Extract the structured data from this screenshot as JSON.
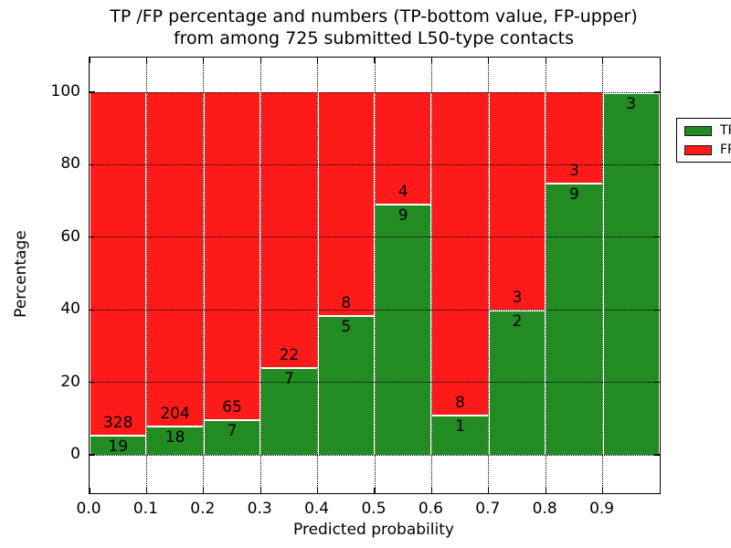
{
  "title": {
    "line1": "TP /FP percentage and numbers (TP-bottom value, FP-upper)",
    "line2": "from among 725 submitted L50-type contacts"
  },
  "chart_data": {
    "type": "bar",
    "stacked": true,
    "normalized_to_percent": true,
    "title": "TP /FP percentage and numbers (TP-bottom value, FP-upper) from among 725 submitted L50-type contacts",
    "xlabel": "Predicted probability",
    "ylabel": "Percentage",
    "total_contacts": 725,
    "categories": [
      "0.0-0.1",
      "0.1-0.2",
      "0.2-0.3",
      "0.3-0.4",
      "0.4-0.5",
      "0.5-0.6",
      "0.6-0.7",
      "0.7-0.8",
      "0.8-0.9",
      "0.9-1.0"
    ],
    "bin_edges": [
      0.0,
      0.1,
      0.2,
      0.3,
      0.4,
      0.5,
      0.6,
      0.7,
      0.8,
      0.9,
      1.0
    ],
    "series": [
      {
        "name": "TP",
        "color": "#228B22",
        "counts": [
          19,
          18,
          7,
          7,
          5,
          9,
          1,
          2,
          9,
          3
        ]
      },
      {
        "name": "FP",
        "color": "#FF1A1A",
        "counts": [
          328,
          204,
          65,
          22,
          8,
          4,
          8,
          3,
          3,
          0
        ]
      }
    ],
    "tp_percent": [
      5.5,
      8.1,
      9.7,
      24.1,
      38.5,
      69.2,
      11.1,
      40.0,
      75.0,
      100.0
    ],
    "x_ticks": [
      "0.0",
      "0.1",
      "0.2",
      "0.3",
      "0.4",
      "0.5",
      "0.6",
      "0.7",
      "0.8",
      "0.9"
    ],
    "y_ticks": [
      0,
      20,
      40,
      60,
      80,
      100
    ],
    "xlim": [
      0.0,
      1.0
    ],
    "ylim": [
      -10,
      110
    ],
    "grid": "dotted-black-on",
    "legend": {
      "position": "upper-right",
      "entries": [
        "TP",
        "FP"
      ]
    }
  },
  "colors": {
    "tp": "#228B22",
    "fp": "#FF1A1A",
    "spine": "#000000",
    "background": "#FFFFFF"
  }
}
